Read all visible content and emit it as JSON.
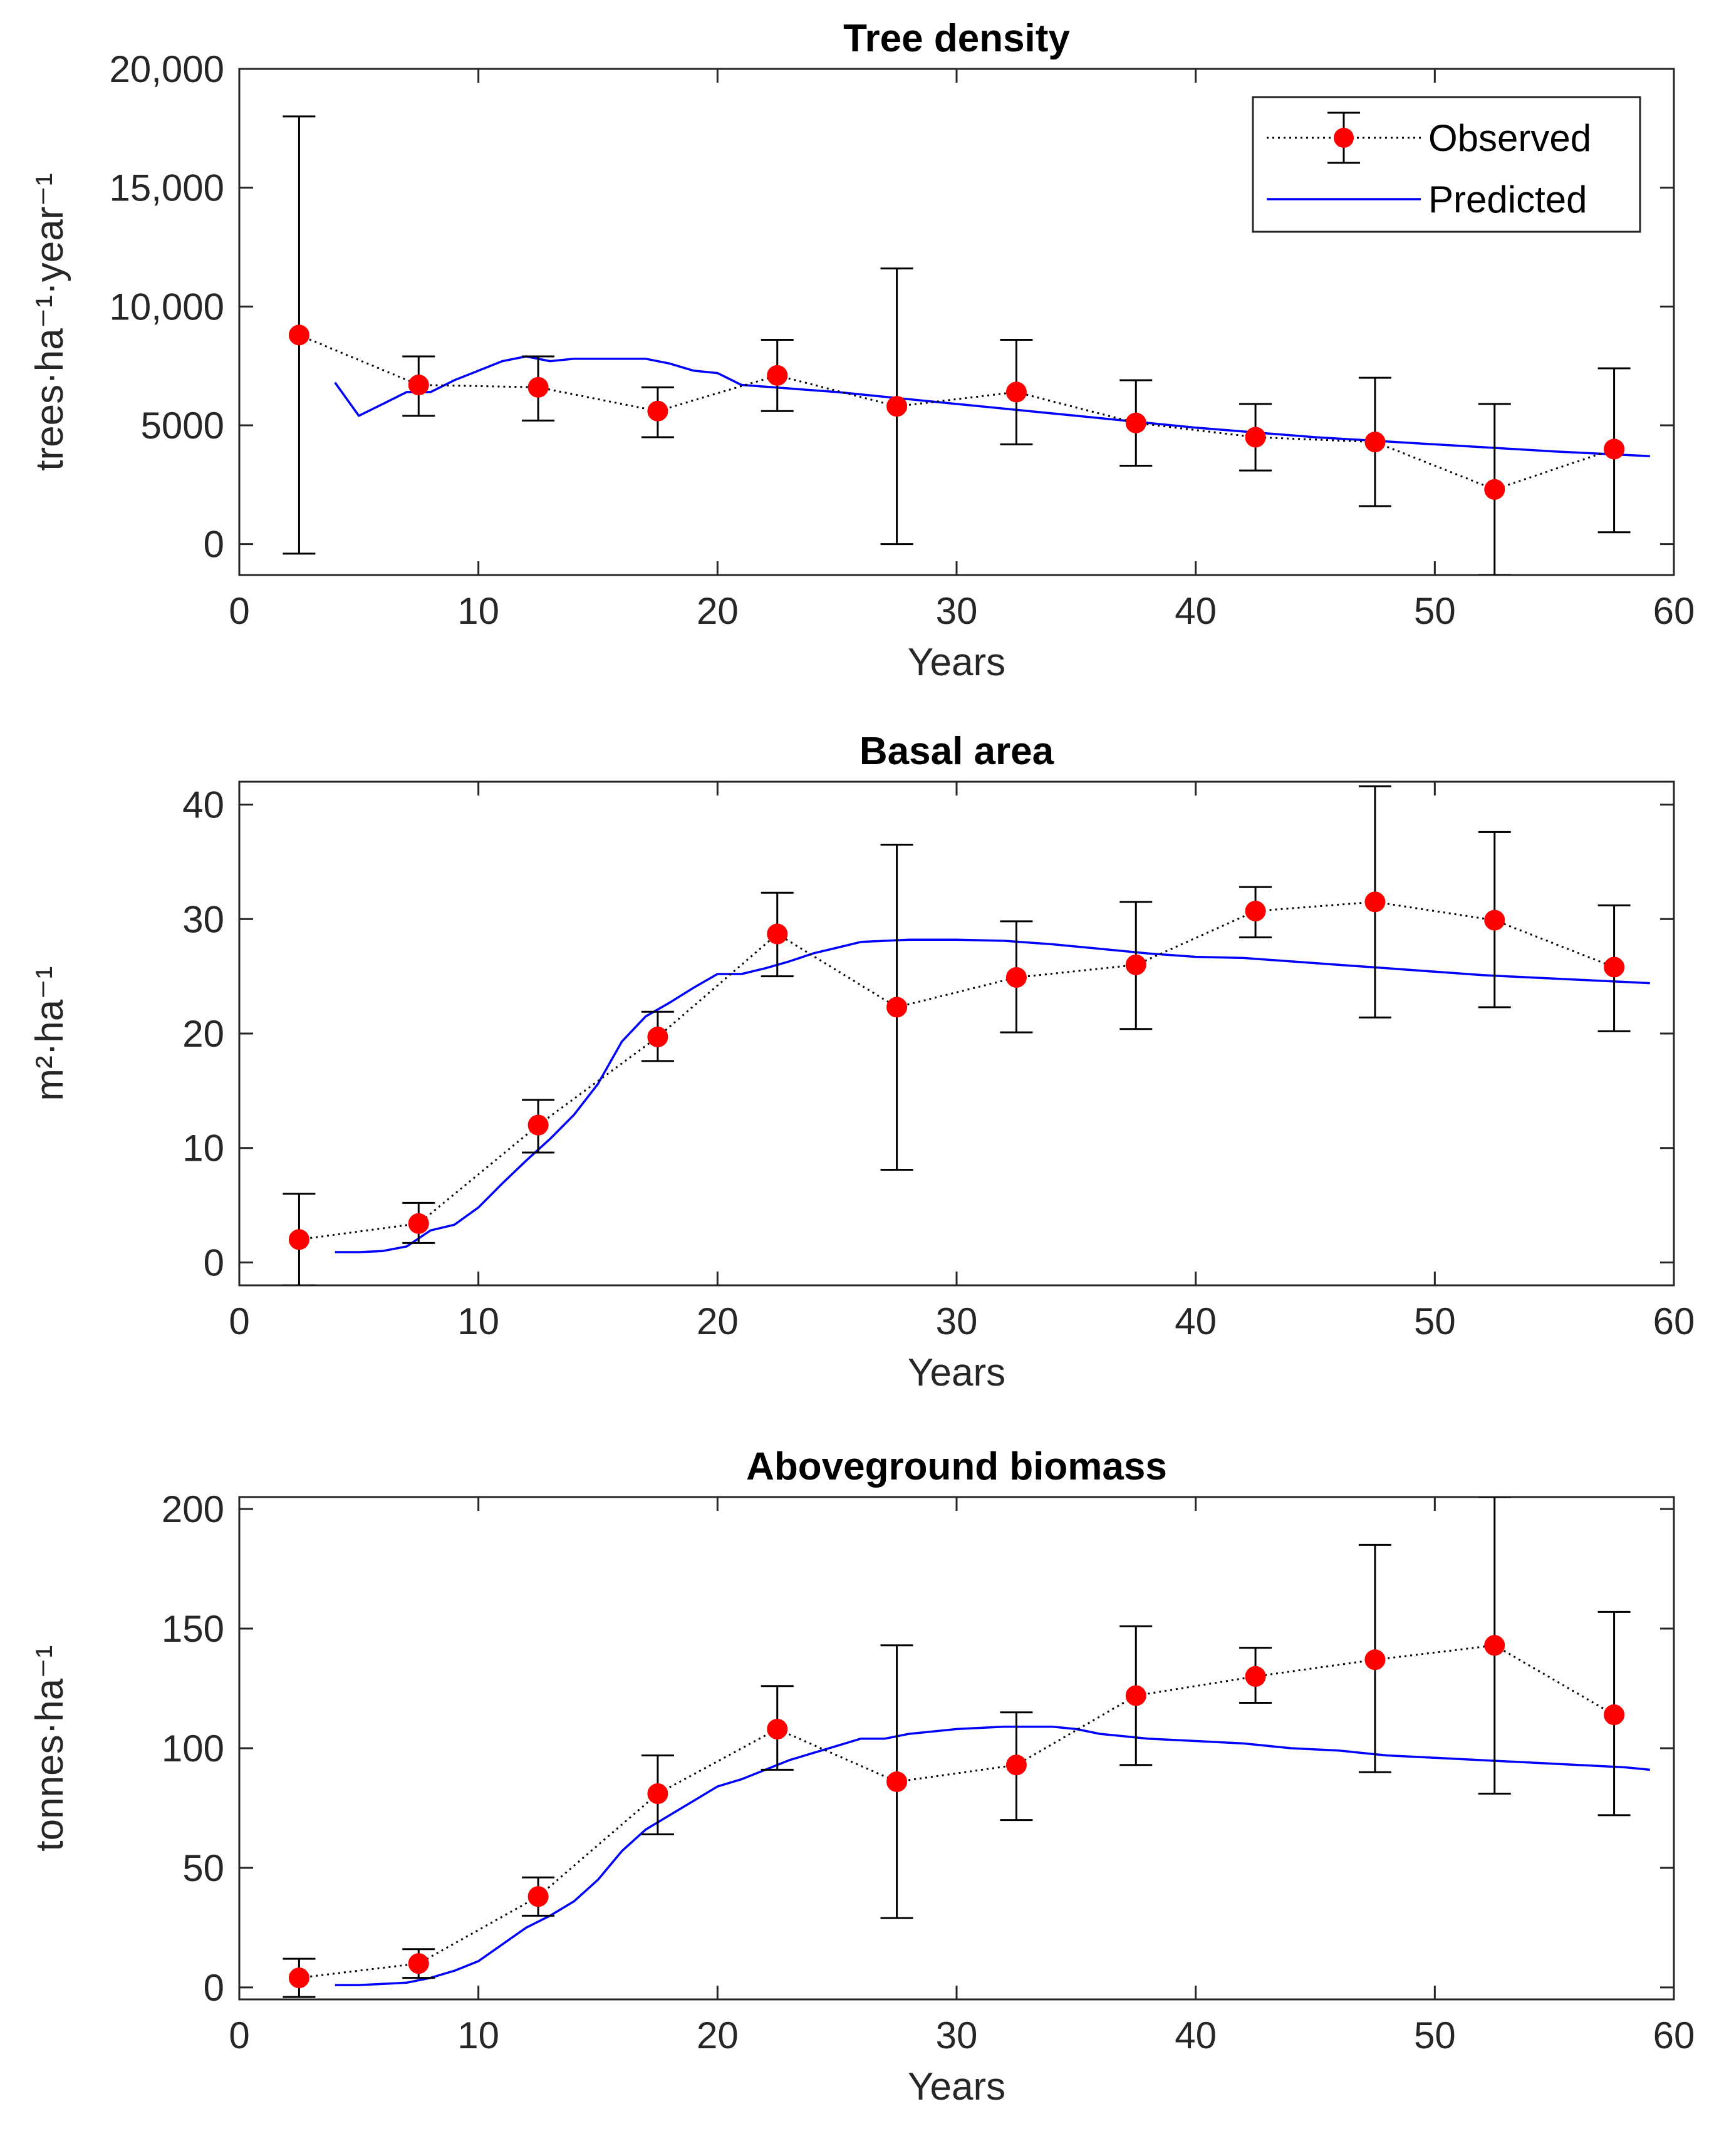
{
  "chart_data": [
    {
      "type": "line",
      "title": "Tree density",
      "xlabel": "Years",
      "ylabel": "trees·ha⁻¹·year⁻¹",
      "xlim": [
        0,
        60
      ],
      "ylim": [
        -1300,
        20000
      ],
      "xticks": [
        0,
        10,
        20,
        30,
        40,
        50,
        60
      ],
      "xtick_labels": [
        "0",
        "10",
        "20",
        "30",
        "40",
        "50",
        "60"
      ],
      "yticks": [
        0,
        5000,
        10000,
        15000,
        20000
      ],
      "ytick_labels": [
        "0",
        "5000",
        "10,000",
        "15,000",
        "20,000"
      ],
      "legend": {
        "position": "top-right",
        "entries": [
          "Observed",
          "Predicted"
        ]
      },
      "series": [
        {
          "name": "Observed",
          "style": "dotted-markers",
          "x": [
            2.5,
            7.5,
            12.5,
            17.5,
            22.5,
            27.5,
            32.5,
            37.5,
            42.5,
            47.5,
            52.5,
            57.5
          ],
          "values": [
            8800,
            6700,
            6600,
            5600,
            7100,
            5800,
            6400,
            5100,
            4500,
            4300,
            2300,
            4000
          ],
          "err_low": [
            -400,
            5400,
            5200,
            4500,
            5600,
            0,
            4200,
            3300,
            3100,
            1600,
            -1300,
            500
          ],
          "err_high": [
            18000,
            7900,
            7900,
            6600,
            8600,
            11600,
            8600,
            6900,
            5900,
            7000,
            5900,
            7400
          ]
        },
        {
          "name": "Predicted",
          "style": "solid",
          "x": [
            4,
            5,
            6,
            7,
            8,
            9,
            10,
            11,
            12,
            13,
            14,
            15,
            16,
            17,
            18,
            19,
            20,
            21,
            25,
            30,
            35,
            40,
            45,
            50,
            55,
            59
          ],
          "values": [
            6800,
            5400,
            5900,
            6400,
            6400,
            6900,
            7300,
            7700,
            7900,
            7700,
            7800,
            7800,
            7800,
            7800,
            7600,
            7300,
            7200,
            6700,
            6400,
            5900,
            5400,
            4900,
            4500,
            4200,
            3900,
            3700
          ]
        }
      ]
    },
    {
      "type": "line",
      "title": "Basal area",
      "xlabel": "Years",
      "ylabel": "m²·ha⁻¹",
      "xlim": [
        0,
        60
      ],
      "ylim": [
        -2,
        42
      ],
      "xticks": [
        0,
        10,
        20,
        30,
        40,
        50,
        60
      ],
      "xtick_labels": [
        "0",
        "10",
        "20",
        "30",
        "40",
        "50",
        "60"
      ],
      "yticks": [
        0,
        10,
        20,
        30,
        40
      ],
      "ytick_labels": [
        "0",
        "10",
        "20",
        "30",
        "40"
      ],
      "series": [
        {
          "name": "Observed",
          "style": "dotted-markers",
          "x": [
            2.5,
            7.5,
            12.5,
            17.5,
            22.5,
            27.5,
            32.5,
            37.5,
            42.5,
            47.5,
            52.5,
            57.5
          ],
          "values": [
            2.0,
            3.4,
            12.0,
            19.7,
            28.7,
            22.3,
            24.9,
            26.0,
            30.7,
            31.5,
            29.9,
            25.8
          ],
          "err_low": [
            -2.0,
            1.7,
            9.6,
            17.6,
            25.0,
            8.1,
            20.1,
            20.4,
            28.4,
            21.4,
            22.3,
            20.2
          ],
          "err_high": [
            6.0,
            5.2,
            14.2,
            21.9,
            32.3,
            36.5,
            29.8,
            31.5,
            32.8,
            41.6,
            37.6,
            31.2
          ]
        },
        {
          "name": "Predicted",
          "style": "solid",
          "x": [
            4,
            5,
            6,
            7,
            8,
            9,
            10,
            11,
            12,
            13,
            14,
            15,
            16,
            17,
            18,
            19,
            20,
            21,
            22,
            23,
            24,
            25,
            26,
            27,
            28,
            30,
            32,
            34,
            36,
            38,
            40,
            42,
            44,
            46,
            48,
            50,
            52,
            54,
            56,
            58,
            59
          ],
          "values": [
            0.9,
            0.9,
            1.0,
            1.4,
            2.8,
            3.3,
            4.8,
            6.9,
            8.9,
            10.8,
            12.9,
            15.6,
            19.3,
            21.5,
            22.7,
            24.0,
            25.2,
            25.2,
            25.7,
            26.3,
            27.0,
            27.5,
            28.0,
            28.1,
            28.2,
            28.2,
            28.1,
            27.8,
            27.4,
            27.0,
            26.7,
            26.6,
            26.3,
            26.0,
            25.7,
            25.4,
            25.1,
            24.9,
            24.7,
            24.5,
            24.4
          ]
        }
      ]
    },
    {
      "type": "line",
      "title": "Aboveground biomass",
      "xlabel": "Years",
      "ylabel": "tonnes·ha⁻¹",
      "xlim": [
        0,
        60
      ],
      "ylim": [
        -5,
        205
      ],
      "xticks": [
        0,
        10,
        20,
        30,
        40,
        50,
        60
      ],
      "xtick_labels": [
        "0",
        "10",
        "20",
        "30",
        "40",
        "50",
        "60"
      ],
      "yticks": [
        0,
        50,
        100,
        150,
        200
      ],
      "ytick_labels": [
        "0",
        "50",
        "100",
        "150",
        "200"
      ],
      "series": [
        {
          "name": "Observed",
          "style": "dotted-markers",
          "x": [
            2.5,
            7.5,
            12.5,
            17.5,
            22.5,
            27.5,
            32.5,
            37.5,
            42.5,
            47.5,
            52.5,
            57.5
          ],
          "values": [
            4,
            10,
            38,
            81,
            108,
            86,
            93,
            122,
            130,
            137,
            143,
            114
          ],
          "err_low": [
            -4,
            4,
            30,
            64,
            91,
            29,
            70,
            93,
            119,
            90,
            81,
            72
          ],
          "err_high": [
            12,
            16,
            46,
            97,
            126,
            143,
            115,
            151,
            142,
            185,
            205,
            157
          ]
        },
        {
          "name": "Predicted",
          "style": "solid",
          "x": [
            4,
            5,
            6,
            7,
            8,
            9,
            10,
            11,
            12,
            13,
            14,
            15,
            16,
            17,
            18,
            19,
            20,
            21,
            22,
            23,
            24,
            25,
            26,
            27,
            28,
            30,
            32,
            34,
            35,
            36,
            38,
            40,
            42,
            44,
            46,
            48,
            50,
            52,
            54,
            56,
            58,
            59
          ],
          "values": [
            1,
            1,
            1.5,
            2,
            4,
            7,
            11,
            18,
            25,
            30,
            36,
            45,
            57,
            66,
            72,
            78,
            84,
            87,
            91,
            95,
            98,
            101,
            104,
            104,
            106,
            108,
            109,
            109,
            108,
            106,
            104,
            103,
            102,
            100,
            99,
            97,
            96,
            95,
            94,
            93,
            92,
            91
          ]
        }
      ]
    }
  ]
}
